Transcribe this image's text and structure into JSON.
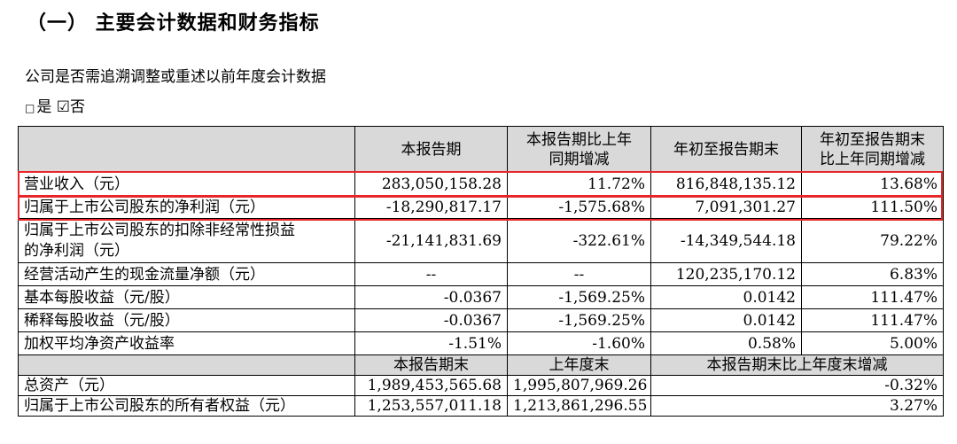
{
  "heading": "（一） 主要会计数据和财务指标",
  "question": "公司是否需追溯调整或重述以前年度会计数据",
  "choice": {
    "yes_box": "□",
    "yes_label": "是",
    "no_box": "☑",
    "no_label": "否"
  },
  "table": {
    "headers": [
      "",
      "本报告期",
      "本报告期比上年同期增减",
      "年初至报告期末",
      "年初至报告期末比上年同期增减"
    ],
    "header_lines": {
      "col2_line1": "本报告期比上年",
      "col2_line2": "同期增减",
      "col4_line1": "年初至报告期末",
      "col4_line2": "比上年同期增减"
    },
    "rows": [
      [
        "营业收入（元）",
        "283,050,158.28",
        "11.72%",
        "816,848,135.12",
        "13.68%"
      ],
      [
        "归属于上市公司股东的净利润（元）",
        "-18,290,817.17",
        "-1,575.68%",
        "7,091,301.27",
        "111.50%"
      ],
      [
        "归属于上市公司股东的扣除非经常性损益的净利润（元）",
        "-21,141,831.69",
        "-322.61%",
        "-14,349,544.18",
        "79.22%"
      ],
      [
        "经营活动产生的现金流量净额（元）",
        "--",
        "--",
        "120,235,170.12",
        "6.83%"
      ],
      [
        "基本每股收益（元/股）",
        "-0.0367",
        "-1,569.25%",
        "0.0142",
        "111.47%"
      ],
      [
        "稀释每股收益（元/股）",
        "-0.0367",
        "-1,569.25%",
        "0.0142",
        "111.47%"
      ],
      [
        "加权平均净资产收益率",
        "-1.51%",
        "-1.60%",
        "0.58%",
        "5.00%"
      ]
    ],
    "row3_line1": "归属于上市公司股东的扣除非经常性损益",
    "row3_line2": "的净利润（元）",
    "sub_headers": [
      "",
      "本报告期末",
      "上年度末",
      "本报告期末比上年度末增减"
    ],
    "sub_rows": [
      [
        "总资产（元）",
        "1,989,453,565.68",
        "1,995,807,969.26",
        "-0.32%"
      ],
      [
        "归属于上市公司股东的所有者权益（元）",
        "1,253,557,011.18",
        "1,213,861,296.55",
        "3.27%"
      ]
    ]
  },
  "colors": {
    "highlight": "#e8262a",
    "header_bg": "#d9d9d9"
  }
}
